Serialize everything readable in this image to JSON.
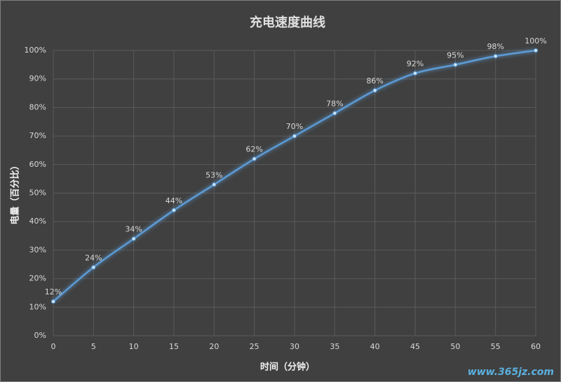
{
  "chart_data": {
    "type": "line",
    "title": "充电速度曲线",
    "x_label": "时间（分钟）",
    "y_label": "电量（百分比）",
    "x": [
      0,
      5,
      10,
      15,
      20,
      25,
      30,
      35,
      40,
      45,
      50,
      55,
      60
    ],
    "values": [
      12,
      24,
      34,
      44,
      53,
      62,
      70,
      78,
      86,
      92,
      95,
      98,
      100
    ],
    "value_labels": [
      "12%",
      "24%",
      "34%",
      "44%",
      "53%",
      "62%",
      "70%",
      "78%",
      "86%",
      "92%",
      "95%",
      "98%",
      "100%"
    ],
    "color": "#5b9bd5",
    "xlim": [
      0,
      60
    ],
    "xticks": [
      0,
      5,
      10,
      15,
      20,
      25,
      30,
      35,
      40,
      45,
      50,
      55,
      60
    ],
    "ylim": [
      0,
      100
    ],
    "yticks": [
      {
        "value": 0,
        "label": "0%"
      },
      {
        "value": 10,
        "label": "10%"
      },
      {
        "value": 20,
        "label": "20%"
      },
      {
        "value": 30,
        "label": "30%"
      },
      {
        "value": 40,
        "label": "40%"
      },
      {
        "value": 50,
        "label": "50%"
      },
      {
        "value": 60,
        "label": "60%"
      },
      {
        "value": 70,
        "label": "70%"
      },
      {
        "value": 80,
        "label": "80%"
      },
      {
        "value": 90,
        "label": "90%"
      },
      {
        "value": 100,
        "label": "100%"
      }
    ],
    "grid": true,
    "watermark": "www.365jz.com"
  }
}
